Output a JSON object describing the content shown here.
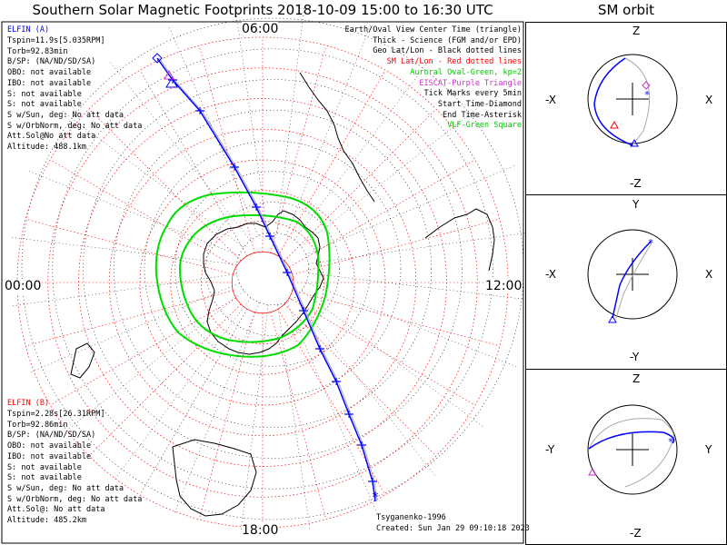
{
  "title": "Southern Solar Magnetic Footprints 2018-10-09 15:00 to 16:30 UTC",
  "side_title": "SM orbit",
  "time_labels": {
    "top": "06:00",
    "left": "00:00",
    "right": "12:00",
    "bottom": "18:00"
  },
  "elfin_a": {
    "name": "ELFIN (A)",
    "color": "#0000ff",
    "lines": [
      "Tspin=11.9s[5.035RPM]",
      "Torb=92.83min",
      "B/SP: (NA/ND/SD/SA)",
      "OBO: not available",
      "IBO: not available",
      "S: not available",
      "S: not available",
      "S w/Sun, deg: No att data",
      "S w/OrbNorm, deg: No att data",
      "Att.Sol@No att data",
      "Altitude: 488.1km"
    ]
  },
  "elfin_b": {
    "name": "ELFIN (B)",
    "color": "#ff0000",
    "lines": [
      "Tspin=2.28s[26.31RPM]",
      "Torb=92.86min",
      "B/SP: (NA/ND/SD/SA)",
      "OBO: not available",
      "IBO: not available",
      "S: not available",
      "S: not available",
      "S w/Sun, deg: No att data",
      "S w/OrbNorm, deg: No att data",
      "Att.Sol@: No att data",
      "Altitude: 485.2km"
    ]
  },
  "legend": [
    {
      "text": "Earth/Oval View Center Time (triangle)",
      "color": "#000000"
    },
    {
      "text": "Thick - Science (FGM and/or EPD)",
      "color": "#000000"
    },
    {
      "text": "Geo Lat/Lon - Black dotted lines",
      "color": "#000000"
    },
    {
      "text": "SM Lat/Lon - Red dotted lines",
      "color": "#ff0000"
    },
    {
      "text": "Auroral Oval-Green, kp=2",
      "color": "#00cc00"
    },
    {
      "text": "EISCAT-Purple Triangle",
      "color": "#cc33cc"
    },
    {
      "text": "Tick Marks every 5min",
      "color": "#000000"
    },
    {
      "text": "Start Time-Diamond",
      "color": "#000000"
    },
    {
      "text": "End Time-Asterisk",
      "color": "#000000"
    },
    {
      "text": "VLF-Green Square",
      "color": "#00cc00"
    }
  ],
  "footer": {
    "model": "Tsyganenko-1996",
    "created": "Created: Sun Jan 29 09:10:18 2023"
  },
  "panels": [
    {
      "top": "Z",
      "bottom": "-Z",
      "left": "-X",
      "right": "X"
    },
    {
      "top": "Y",
      "bottom": "-Y",
      "left": "-X",
      "right": "X"
    },
    {
      "top": "Z",
      "bottom": "-Z",
      "left": "-Y",
      "right": "Y"
    }
  ],
  "chart_data": {
    "type": "scatter",
    "description_axes": "polar SM coordinates; latitude rings every 10 deg, MLT spokes",
    "ground_track_elfin_a": {
      "name": "ELFIN (A)",
      "color": "#0000ff",
      "tick_interval_min": 5
    },
    "auroral_oval_kp": 2,
    "colors": {
      "track_a": "#0000ff",
      "track_b": "#ff0000",
      "oval": "#00cc00",
      "sm_grid": "#ff0000",
      "geo_grid": "#000000",
      "eiscat": "#cc33cc"
    }
  }
}
